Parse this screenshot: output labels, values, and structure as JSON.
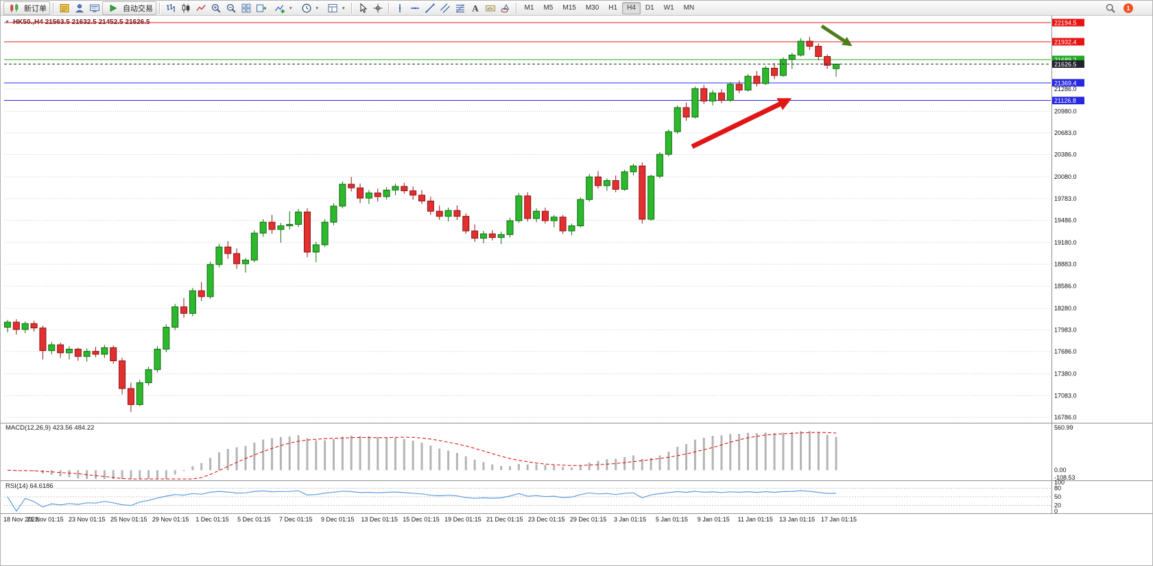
{
  "toolbar": {
    "new_order": {
      "label": "新订单",
      "icon": "order-icon"
    },
    "autotrade": {
      "label": "自动交易",
      "icon": "autotrade-icon"
    },
    "left_icons_1": [
      "market-watch-icon",
      "navigator-icon",
      "terminal-icon"
    ],
    "chart_icons": [
      "bar-chart-icon",
      "candle-chart-icon",
      "line-chart-icon",
      "zoom-in-icon",
      "zoom-out-icon",
      "tile-windows-icon",
      "chart-shift-icon"
    ],
    "dropdown_icons": [
      "indicators-icon",
      "period-icon",
      "template-icon"
    ],
    "pointer_icons": [
      "cursor-icon",
      "crosshair-icon"
    ],
    "drawing_icons": [
      "vline-icon",
      "hline-icon",
      "trendline-icon",
      "channel-icon",
      "fibonacci-icon",
      "text-icon",
      "label-icon",
      "shapes-icon"
    ],
    "timeframes": [
      "M1",
      "M5",
      "M15",
      "M30",
      "H1",
      "H4",
      "D1",
      "W1",
      "MN"
    ],
    "active_timeframe": "H4",
    "right_icons": [
      "search-icon"
    ],
    "notification_count": "1"
  },
  "chart_data": {
    "type": "candlestick",
    "symbol": "HK50.",
    "timeframe": "H4",
    "title": "HK50.,H4 21563.5 21632.5 21452.5 21626.5",
    "ohlc_display": {
      "open": "21563.5",
      "high": "21632.5",
      "low": "21452.5",
      "close": "21626.5"
    },
    "ylim": [
      16730,
      22290
    ],
    "price_axis_labels": [
      "21286.0",
      "20980.0",
      "20683.0",
      "20386.0",
      "20080.0",
      "19783.0",
      "19486.0",
      "19180.0",
      "18883.0",
      "18586.0",
      "18280.0",
      "17983.0",
      "17686.0",
      "17380.0",
      "17083.0",
      "16786.0"
    ],
    "hlines": [
      {
        "value": 22194.5,
        "label": "22194.5",
        "color": "#e81414"
      },
      {
        "value": 21932.4,
        "label": "21932.4",
        "color": "#e81414"
      },
      {
        "value": 21689.2,
        "label": "21689.2",
        "color": "#1faa1f"
      },
      {
        "value": 21369.4,
        "label": "21369.4",
        "color": "#2828e0"
      },
      {
        "value": 21126.8,
        "label": "21126.8",
        "color": "#2828e0"
      }
    ],
    "current_price": {
      "value": 21626.5,
      "label": "21626.5",
      "color": "#23232e"
    },
    "time_axis_labels": [
      "18 Nov 2022",
      "21 Nov 01:15",
      "23 Nov 01:15",
      "25 Nov 01:15",
      "29 Nov 01:15",
      "1 Dec 01:15",
      "5 Dec 01:15",
      "7 Dec 01:15",
      "9 Dec 01:15",
      "13 Dec 01:15",
      "15 Dec 01:15",
      "19 Dec 01:15",
      "21 Dec 01:15",
      "23 Dec 01:15",
      "29 Dec 01:15",
      "3 Jan 01:15",
      "5 Jan 01:15",
      "9 Jan 01:15",
      "11 Jan 01:15",
      "13 Jan 01:15",
      "17 Jan 01:15"
    ],
    "candles": [
      [
        18020,
        18120,
        17950,
        18090
      ],
      [
        18090,
        18130,
        17920,
        17990
      ],
      [
        17990,
        18100,
        17940,
        18070
      ],
      [
        18070,
        18110,
        17960,
        18010
      ],
      [
        18010,
        18040,
        17580,
        17700
      ],
      [
        17700,
        17820,
        17650,
        17780
      ],
      [
        17780,
        17810,
        17600,
        17670
      ],
      [
        17670,
        17760,
        17580,
        17720
      ],
      [
        17720,
        17740,
        17560,
        17620
      ],
      [
        17620,
        17730,
        17550,
        17690
      ],
      [
        17690,
        17750,
        17610,
        17650
      ],
      [
        17650,
        17780,
        17600,
        17740
      ],
      [
        17740,
        17770,
        17520,
        17560
      ],
      [
        17560,
        17600,
        17100,
        17180
      ],
      [
        17180,
        17260,
        16860,
        16960
      ],
      [
        16960,
        17300,
        16940,
        17260
      ],
      [
        17260,
        17480,
        17220,
        17440
      ],
      [
        17440,
        17760,
        17400,
        17720
      ],
      [
        17720,
        18060,
        17680,
        18020
      ],
      [
        18020,
        18340,
        17980,
        18300
      ],
      [
        18300,
        18420,
        18150,
        18210
      ],
      [
        18210,
        18560,
        18170,
        18520
      ],
      [
        18520,
        18640,
        18380,
        18440
      ],
      [
        18440,
        18920,
        18410,
        18880
      ],
      [
        18880,
        19160,
        18840,
        19120
      ],
      [
        19120,
        19200,
        18960,
        19030
      ],
      [
        19030,
        19100,
        18820,
        18890
      ],
      [
        18890,
        18970,
        18770,
        18940
      ],
      [
        18940,
        19350,
        18910,
        19310
      ],
      [
        19310,
        19500,
        19260,
        19460
      ],
      [
        19460,
        19560,
        19300,
        19360
      ],
      [
        19360,
        19450,
        19180,
        19410
      ],
      [
        19410,
        19610,
        19360,
        19430
      ],
      [
        19430,
        19640,
        19390,
        19600
      ],
      [
        19600,
        19650,
        18980,
        19050
      ],
      [
        19050,
        19190,
        18910,
        19150
      ],
      [
        19150,
        19500,
        19120,
        19460
      ],
      [
        19460,
        19720,
        19420,
        19680
      ],
      [
        19680,
        20020,
        19650,
        19980
      ],
      [
        19980,
        20080,
        19880,
        19930
      ],
      [
        19930,
        19990,
        19720,
        19790
      ],
      [
        19790,
        19900,
        19710,
        19860
      ],
      [
        19860,
        19920,
        19740,
        19810
      ],
      [
        19810,
        19940,
        19770,
        19900
      ],
      [
        19900,
        19990,
        19830,
        19950
      ],
      [
        19950,
        20000,
        19850,
        19890
      ],
      [
        19890,
        19950,
        19770,
        19830
      ],
      [
        19830,
        19900,
        19710,
        19750
      ],
      [
        19750,
        19810,
        19560,
        19610
      ],
      [
        19610,
        19690,
        19490,
        19540
      ],
      [
        19540,
        19660,
        19470,
        19620
      ],
      [
        19620,
        19690,
        19490,
        19540
      ],
      [
        19540,
        19580,
        19300,
        19340
      ],
      [
        19340,
        19430,
        19190,
        19240
      ],
      [
        19240,
        19340,
        19170,
        19300
      ],
      [
        19300,
        19350,
        19210,
        19250
      ],
      [
        19250,
        19330,
        19160,
        19290
      ],
      [
        19290,
        19520,
        19250,
        19480
      ],
      [
        19480,
        19860,
        19450,
        19820
      ],
      [
        19820,
        19870,
        19470,
        19510
      ],
      [
        19510,
        19650,
        19460,
        19610
      ],
      [
        19610,
        19660,
        19440,
        19480
      ],
      [
        19480,
        19560,
        19390,
        19530
      ],
      [
        19530,
        19560,
        19300,
        19340
      ],
      [
        19340,
        19440,
        19280,
        19410
      ],
      [
        19410,
        19800,
        19390,
        19770
      ],
      [
        19770,
        20120,
        19740,
        20080
      ],
      [
        20080,
        20160,
        19920,
        19960
      ],
      [
        19960,
        20060,
        19890,
        20030
      ],
      [
        20030,
        20100,
        19870,
        19910
      ],
      [
        19910,
        20180,
        19890,
        20150
      ],
      [
        20150,
        20260,
        20100,
        20230
      ],
      [
        20230,
        20280,
        19440,
        19500
      ],
      [
        19500,
        20110,
        19480,
        20090
      ],
      [
        20090,
        20420,
        20060,
        20390
      ],
      [
        20390,
        20730,
        20360,
        20700
      ],
      [
        20700,
        21060,
        20670,
        21030
      ],
      [
        21030,
        21100,
        20850,
        20900
      ],
      [
        20900,
        21320,
        20880,
        21290
      ],
      [
        21290,
        21340,
        21080,
        21120
      ],
      [
        21120,
        21270,
        21060,
        21230
      ],
      [
        21230,
        21280,
        21090,
        21130
      ],
      [
        21130,
        21380,
        21110,
        21350
      ],
      [
        21350,
        21400,
        21230,
        21270
      ],
      [
        21270,
        21490,
        21250,
        21460
      ],
      [
        21460,
        21530,
        21320,
        21360
      ],
      [
        21360,
        21600,
        21340,
        21570
      ],
      [
        21570,
        21640,
        21420,
        21470
      ],
      [
        21470,
        21720,
        21450,
        21690
      ],
      [
        21690,
        21780,
        21560,
        21750
      ],
      [
        21750,
        21980,
        21730,
        21940
      ],
      [
        21940,
        22000,
        21820,
        21870
      ],
      [
        21870,
        21910,
        21680,
        21730
      ],
      [
        21730,
        21760,
        21560,
        21610
      ],
      [
        21563.5,
        21632.5,
        21452.5,
        21626.5
      ]
    ],
    "indicators": {
      "macd": {
        "label": "MACD(12,26,9) 423.56 484.22",
        "params": [
          12,
          26,
          9
        ],
        "max": 560.99,
        "min": -108.53,
        "scale_labels": [
          "560.99",
          "0.00",
          "-108.53"
        ]
      },
      "rsi": {
        "label": "RSI(14) 64.6186",
        "period": 14,
        "levels": [
          80,
          50,
          20
        ],
        "scale_labels": [
          "100",
          "80",
          "50",
          "20",
          "0"
        ]
      }
    },
    "annotations": [
      {
        "type": "arrow",
        "color": "#e01616",
        "width": 7,
        "from": [
          1008,
          213
        ],
        "to": [
          1148,
          145
        ]
      },
      {
        "type": "arrow",
        "color": "#4e7d1b",
        "width": 5,
        "from": [
          1197,
          37
        ],
        "to": [
          1238,
          64
        ]
      }
    ],
    "colors": {
      "up": "#2eb82e",
      "up_border": "#0e6b0e",
      "down": "#e23030",
      "down_border": "#8f1010",
      "grid": "#c8c8c8",
      "macd_hist": "#b4b4b4",
      "macd_signal": "#e00000",
      "rsi_line": "#5b9ce0"
    }
  }
}
